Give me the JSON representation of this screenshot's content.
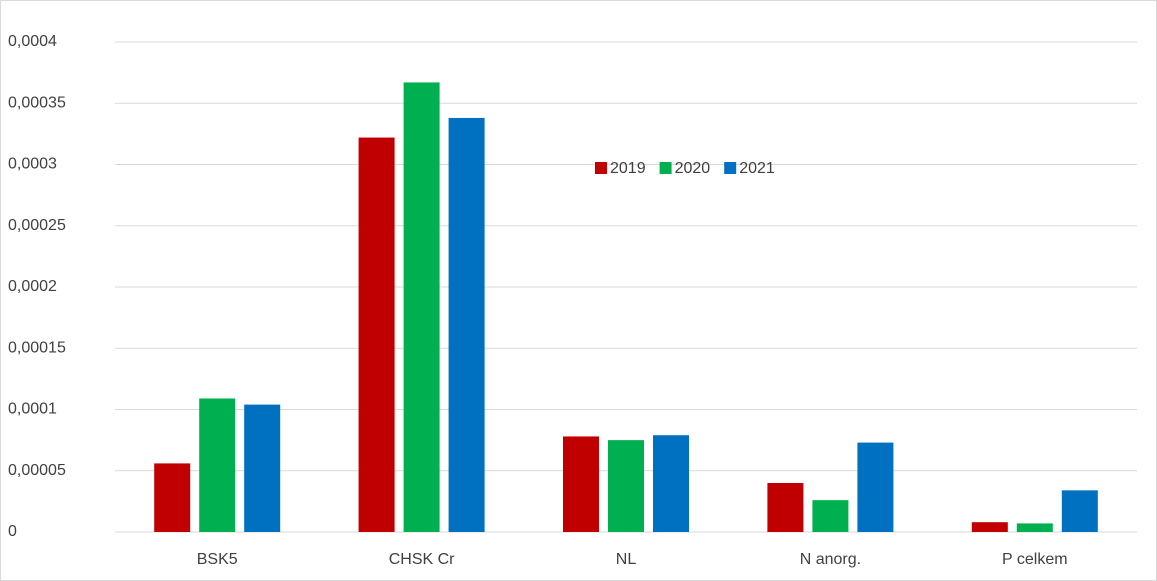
{
  "chart_data": {
    "type": "bar",
    "categories": [
      "BSK5",
      "CHSK Cr",
      "NL",
      "N anorg.",
      "P celkem"
    ],
    "series": [
      {
        "name": "2019",
        "color": "#c00000",
        "values": [
          5.6e-05,
          0.000322,
          7.8e-05,
          4e-05,
          8e-06
        ]
      },
      {
        "name": "2020",
        "color": "#00b050",
        "values": [
          0.000109,
          0.000367,
          7.5e-05,
          2.6e-05,
          7e-06
        ]
      },
      {
        "name": "2021",
        "color": "#0070c0",
        "values": [
          0.000104,
          0.000338,
          7.9e-05,
          7.3e-05,
          3.4e-05
        ]
      }
    ],
    "ylim": [
      0,
      0.0004
    ],
    "yticks": [
      0,
      {
        "value": 5e-05,
        "label": "0,00005"
      },
      {
        "value": 0.0001,
        "label": "0,0001"
      },
      {
        "value": 0.00015,
        "label": "0,00015"
      },
      {
        "value": 0.0002,
        "label": "0,0002"
      },
      {
        "value": 0.00025,
        "label": "0,00025"
      },
      {
        "value": 0.0003,
        "label": "0,0003"
      },
      {
        "value": 0.00035,
        "label": "0,00035"
      },
      {
        "value": 0.0004,
        "label": "0,0004"
      }
    ],
    "grid": true,
    "legend": "top"
  }
}
